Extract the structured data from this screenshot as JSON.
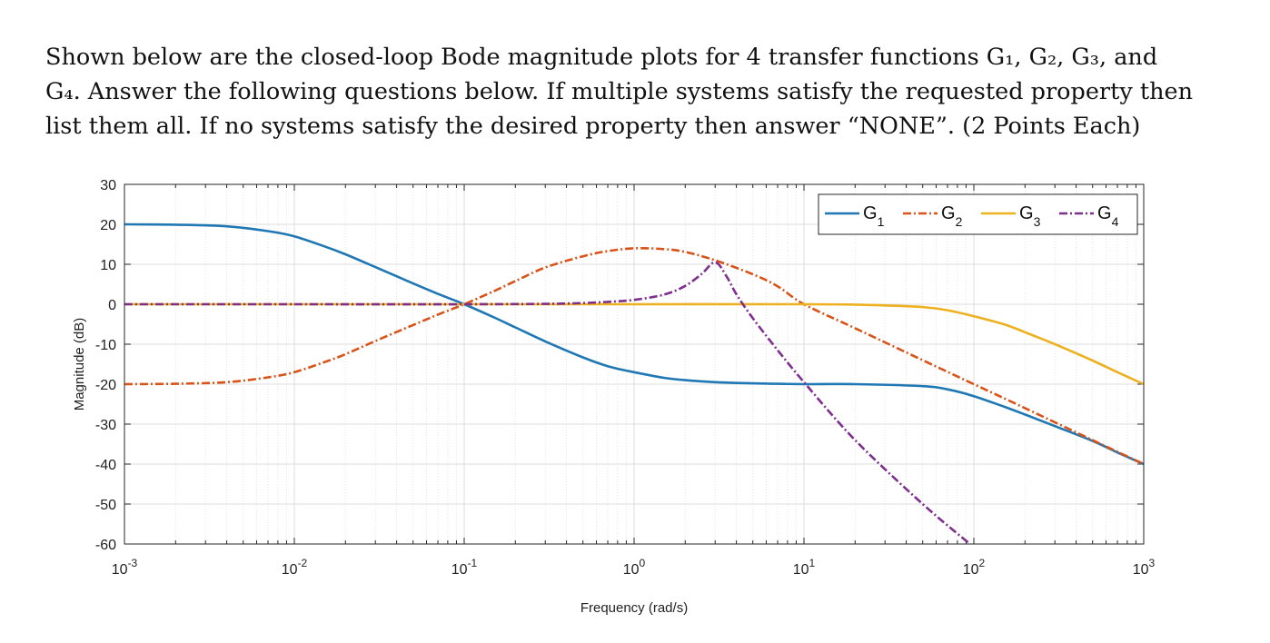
{
  "problem": {
    "lines": [
      "Shown below are the closed-loop Bode magnitude plots for 4 transfer functions G₁, G₂, G₃, and",
      "G₄. Answer the following questions below. If multiple systems satisfy the requested property then",
      "list them all. If no systems satisfy the desired property then answer “NONE”. (2 Points Each)"
    ]
  },
  "chart_data": {
    "type": "line",
    "xlabel": "Frequency  (rad/s)",
    "ylabel": "Magnitude (dB)",
    "xscale": "log",
    "xlim": [
      0.001,
      1000
    ],
    "ylim": [
      -60,
      30
    ],
    "yticks": [
      30,
      20,
      10,
      0,
      -10,
      -20,
      -30,
      -40,
      -50,
      -60
    ],
    "xtick_labels": [
      {
        "base": "10",
        "exp": "-3"
      },
      {
        "base": "10",
        "exp": "-2"
      },
      {
        "base": "10",
        "exp": "-1"
      },
      {
        "base": "10",
        "exp": "0"
      },
      {
        "base": "10",
        "exp": "1"
      },
      {
        "base": "10",
        "exp": "2"
      },
      {
        "base": "10",
        "exp": "3"
      }
    ],
    "grid": true,
    "legend_position": "top-right",
    "series": [
      {
        "name": "G",
        "sub": "1",
        "color": "#1f77b4",
        "dash": "solid",
        "x": [
          0.001,
          0.002,
          0.004,
          0.007,
          0.01,
          0.015,
          0.02,
          0.03,
          0.05,
          0.07,
          0.1,
          0.15,
          0.2,
          0.3,
          0.5,
          0.7,
          1,
          1.5,
          2,
          3,
          5,
          7,
          10,
          20,
          50,
          70,
          100,
          150,
          200,
          300,
          500,
          700,
          1000
        ],
        "y": [
          20,
          19.9,
          19.5,
          18.3,
          17,
          14.5,
          12.5,
          9.3,
          5.2,
          2.6,
          0,
          -3.3,
          -5.8,
          -9.3,
          -13.3,
          -15.5,
          -17,
          -18.4,
          -19,
          -19.5,
          -19.8,
          -19.9,
          -20,
          -20,
          -20.5,
          -21.3,
          -23,
          -25.6,
          -27.6,
          -30.5,
          -34.2,
          -37.1,
          -40
        ]
      },
      {
        "name": "G",
        "sub": "2",
        "color": "#d95319",
        "dash": "dashdot",
        "x": [
          0.001,
          0.002,
          0.004,
          0.007,
          0.01,
          0.015,
          0.02,
          0.03,
          0.05,
          0.07,
          0.1,
          0.15,
          0.2,
          0.3,
          0.5,
          0.7,
          1,
          1.5,
          2,
          3,
          5,
          7,
          10,
          20,
          50,
          100,
          200,
          500,
          1000
        ],
        "y": [
          -20,
          -19.9,
          -19.5,
          -18.3,
          -17,
          -14.5,
          -12.5,
          -9.2,
          -5.2,
          -2.6,
          0,
          3.3,
          5.8,
          9.2,
          12,
          13.3,
          14,
          13.8,
          13.1,
          11,
          7.5,
          4.5,
          0,
          -6,
          -14,
          -20,
          -26,
          -34,
          -40
        ]
      },
      {
        "name": "G",
        "sub": "3",
        "color": "#edb120",
        "dash": "solid",
        "x": [
          0.001,
          0.01,
          0.1,
          1,
          10,
          20,
          30,
          50,
          70,
          100,
          150,
          200,
          300,
          500,
          700,
          1000
        ],
        "y": [
          0,
          0,
          0,
          0,
          0,
          -0.1,
          -0.3,
          -0.7,
          -1.5,
          -3,
          -5,
          -7,
          -10,
          -14.1,
          -17,
          -20
        ]
      },
      {
        "name": "G",
        "sub": "4",
        "color": "#7e2f8e",
        "dash": "dashdot",
        "x": [
          0.001,
          0.01,
          0.1,
          0.3,
          0.5,
          0.7,
          1,
          1.5,
          2,
          2.5,
          3,
          3.5,
          4,
          5,
          7,
          10,
          20,
          50,
          95
        ],
        "y": [
          0,
          0,
          0,
          0.1,
          0.3,
          0.6,
          1.1,
          2.4,
          4.6,
          7.6,
          10.5,
          7,
          2.5,
          -3.5,
          -11.5,
          -19.5,
          -34,
          -50,
          -60
        ]
      }
    ]
  }
}
